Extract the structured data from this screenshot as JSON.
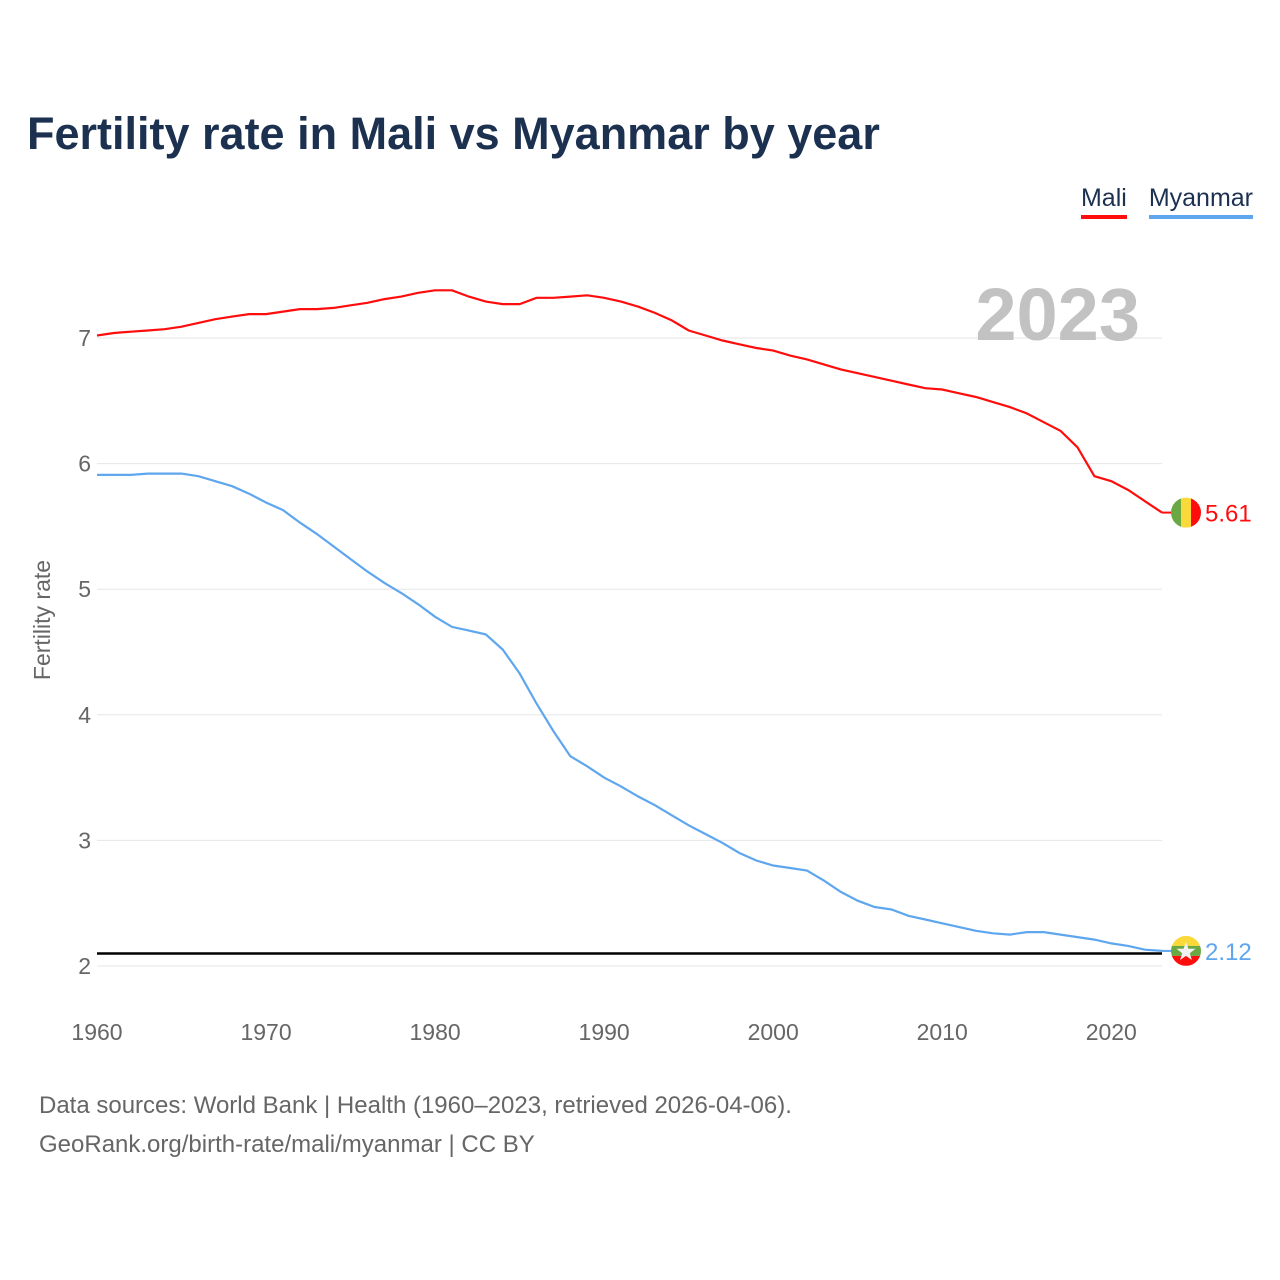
{
  "title": "Fertility rate in Mali vs Myanmar by year",
  "footer": {
    "line1": "Data sources: World Bank | Health (1960–2023, retrieved 2026-04-06).",
    "line2": "GeoRank.org/birth-rate/mali/myanmar | CC BY"
  },
  "chart_data": {
    "type": "line",
    "title": "Fertility rate in Mali vs Myanmar by year",
    "xlabel": "",
    "ylabel": "Fertility rate",
    "year_label": "2023",
    "xlim": [
      1960,
      2023
    ],
    "ylim": [
      2,
      7
    ],
    "x_ticks": [
      "1960",
      "1970",
      "1980",
      "1990",
      "2000",
      "2010",
      "2020"
    ],
    "y_ticks": [
      "2",
      "3",
      "4",
      "5",
      "6",
      "7"
    ],
    "grid": true,
    "legend_position": "top-right",
    "reference_line": {
      "value": 2.1,
      "color": "#000000"
    },
    "x": [
      1960,
      1961,
      1962,
      1963,
      1964,
      1965,
      1966,
      1967,
      1968,
      1969,
      1970,
      1971,
      1972,
      1973,
      1974,
      1975,
      1976,
      1977,
      1978,
      1979,
      1980,
      1981,
      1982,
      1983,
      1984,
      1985,
      1986,
      1987,
      1988,
      1989,
      1990,
      1991,
      1992,
      1993,
      1994,
      1995,
      1996,
      1997,
      1998,
      1999,
      2000,
      2001,
      2002,
      2003,
      2004,
      2005,
      2006,
      2007,
      2008,
      2009,
      2010,
      2011,
      2012,
      2013,
      2014,
      2015,
      2016,
      2017,
      2018,
      2019,
      2020,
      2021,
      2022,
      2023
    ],
    "series": [
      {
        "name": "Mali",
        "color": "#ff0d0d",
        "end_label": "5.61",
        "flag": "mali-flag",
        "values": [
          7.02,
          7.04,
          7.05,
          7.06,
          7.07,
          7.09,
          7.12,
          7.15,
          7.17,
          7.19,
          7.19,
          7.21,
          7.23,
          7.23,
          7.24,
          7.26,
          7.28,
          7.31,
          7.33,
          7.36,
          7.38,
          7.38,
          7.33,
          7.29,
          7.27,
          7.27,
          7.32,
          7.32,
          7.33,
          7.34,
          7.32,
          7.29,
          7.25,
          7.2,
          7.14,
          7.06,
          7.02,
          6.98,
          6.95,
          6.92,
          6.9,
          6.86,
          6.83,
          6.79,
          6.75,
          6.72,
          6.69,
          6.66,
          6.63,
          6.6,
          6.59,
          6.56,
          6.53,
          6.49,
          6.45,
          6.4,
          6.33,
          6.26,
          6.13,
          5.9,
          5.86,
          5.79,
          5.7,
          5.61
        ]
      },
      {
        "name": "Myanmar",
        "color": "#5ea6ee",
        "end_label": "2.12",
        "flag": "myanmar-flag",
        "values": [
          5.91,
          5.91,
          5.91,
          5.92,
          5.92,
          5.92,
          5.9,
          5.86,
          5.82,
          5.76,
          5.69,
          5.63,
          5.53,
          5.44,
          5.34,
          5.24,
          5.14,
          5.05,
          4.97,
          4.88,
          4.78,
          4.7,
          4.67,
          4.64,
          4.52,
          4.33,
          4.09,
          3.87,
          3.67,
          3.59,
          3.5,
          3.43,
          3.35,
          3.28,
          3.2,
          3.12,
          3.05,
          2.98,
          2.9,
          2.84,
          2.8,
          2.78,
          2.76,
          2.68,
          2.59,
          2.52,
          2.47,
          2.45,
          2.4,
          2.37,
          2.34,
          2.31,
          2.28,
          2.26,
          2.25,
          2.27,
          2.27,
          2.25,
          2.23,
          2.21,
          2.18,
          2.16,
          2.13,
          2.12
        ]
      }
    ]
  }
}
